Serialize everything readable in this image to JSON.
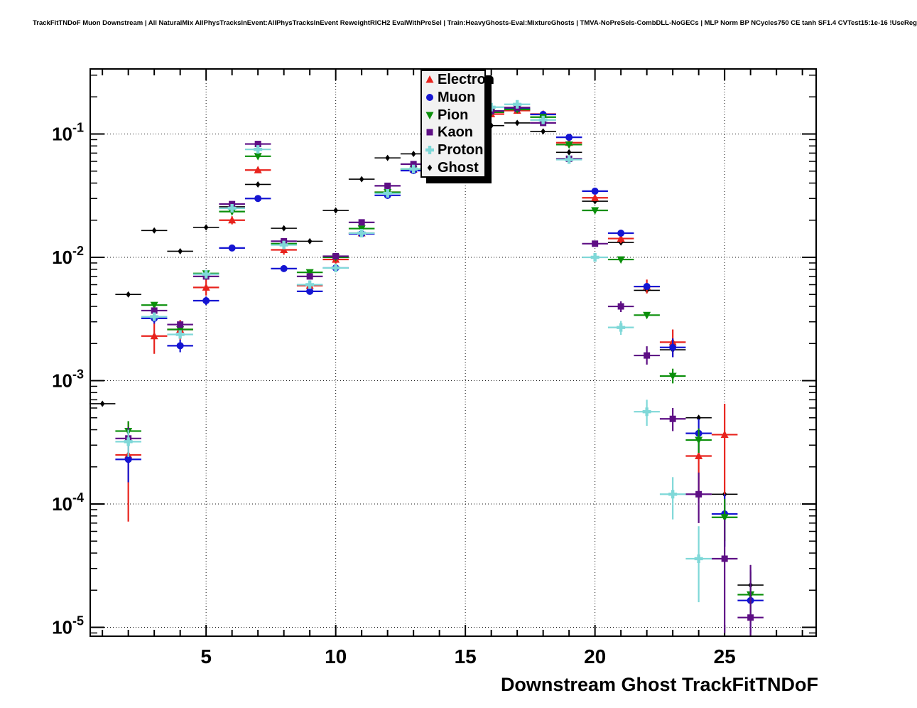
{
  "header": {
    "title": "TrackFitTNDoF Muon Downstream | All NaturalMix AllPhysTracksInEvent:AllPhysTracksInEvent ReweightRICH2 EvalWithPreSel | Train:HeavyGhosts-Eval:MixtureGhosts | TMVA-NoPreSels-CombDLL-NoGECs | MLP Norm BP NCycles750 CE tanh SF1.4 CVTest15:1e-16 !UseReg"
  },
  "legend": {
    "entries": [
      {
        "id": "electron",
        "label": "Electron",
        "marker": "triangle-up",
        "color": "#e8231d"
      },
      {
        "id": "muon",
        "label": "Muon",
        "marker": "circle",
        "color": "#1515d2"
      },
      {
        "id": "pion",
        "label": "Pion",
        "marker": "triangle-down",
        "color": "#0a8f0a"
      },
      {
        "id": "kaon",
        "label": "Kaon",
        "marker": "square",
        "color": "#5e0f85"
      },
      {
        "id": "proton",
        "label": "Proton",
        "marker": "plus",
        "color": "#7fd8d8"
      },
      {
        "id": "ghost",
        "label": "Ghost",
        "marker": "diamond",
        "color": "#000000"
      }
    ]
  },
  "chart_data": {
    "type": "scatter",
    "title": "",
    "xlabel": "Downstream Ghost TrackFitTNDoF",
    "ylabel": "",
    "y_scale": "log",
    "grid": "dotted",
    "legend_position": "top-center",
    "x_range": [
      0.53,
      28.53
    ],
    "y_range": [
      8.5e-06,
      0.337
    ],
    "x_major_ticks": [
      5,
      10,
      15,
      20,
      25
    ],
    "x_tick_labels": [
      "5",
      "10",
      "15",
      "20",
      "25"
    ],
    "x_minor_step": 1,
    "y_major_exponents": [
      -1,
      -2,
      -3,
      -4,
      -5
    ],
    "bin_half_width": 0.5,
    "series": [
      {
        "id": "ghost",
        "name": "Ghost",
        "marker": "diamond",
        "color": "#000000",
        "lw": 1.6,
        "points": [
          [
            1,
            0.00065
          ],
          [
            2,
            0.005
          ],
          [
            3,
            0.0165
          ],
          [
            4,
            0.0112
          ],
          [
            5,
            0.0175
          ],
          [
            6,
            0.0257
          ],
          [
            7,
            0.039
          ],
          [
            8,
            0.0172
          ],
          [
            9,
            0.0135
          ],
          [
            10,
            0.024
          ],
          [
            11,
            0.043
          ],
          [
            12,
            0.064
          ],
          [
            13,
            0.069
          ],
          [
            16,
            0.117
          ],
          [
            17,
            0.123
          ],
          [
            18,
            0.105
          ],
          [
            19,
            0.071
          ],
          [
            20,
            0.0285
          ],
          [
            21,
            0.0132
          ],
          [
            22,
            0.0054
          ],
          [
            23,
            0.00178
          ],
          [
            24,
            0.0005
          ],
          [
            25,
            0.00012,
            9.5e-05,
            0.00015
          ],
          [
            26,
            2.2e-05,
            1.45e-05,
            3.2e-05
          ]
        ]
      },
      {
        "id": "electron",
        "name": "Electron",
        "marker": "triangle-up",
        "color": "#e8231d",
        "lw": 2.2,
        "points": [
          [
            2,
            0.00025,
            7.2e-05,
            0.00046
          ],
          [
            3,
            0.0023,
            0.00165,
            0.003
          ],
          [
            4,
            0.0026,
            0.00215,
            0.0031
          ],
          [
            5,
            0.0057,
            0.0049,
            0.0066
          ],
          [
            6,
            0.02,
            0.0185,
            0.0215
          ],
          [
            7,
            0.051
          ],
          [
            8,
            0.0115,
            0.0105,
            0.0125
          ],
          [
            9,
            0.0059,
            0.0053,
            0.0065
          ],
          [
            10,
            0.0096,
            0.0089,
            0.0103
          ],
          [
            11,
            0.0157,
            0.0148,
            0.0166
          ],
          [
            12,
            0.0337
          ],
          [
            13,
            0.0515
          ],
          [
            16,
            0.145
          ],
          [
            17,
            0.155
          ],
          [
            18,
            0.145
          ],
          [
            19,
            0.085,
            0.081,
            0.089
          ],
          [
            20,
            0.0304,
            0.0285,
            0.032
          ],
          [
            21,
            0.0142,
            0.013,
            0.0155
          ],
          [
            22,
            0.0058,
            0.0051,
            0.0066
          ],
          [
            23,
            0.00205,
            0.00155,
            0.0026
          ],
          [
            24,
            0.000245,
            0.00011,
            0.00039
          ],
          [
            25,
            0.000365,
            9e-05,
            0.00065
          ]
        ]
      },
      {
        "id": "muon",
        "name": "Muon",
        "marker": "circle",
        "color": "#1515d2",
        "lw": 2.2,
        "points": [
          [
            2,
            0.00023,
            0.00015,
            0.00031
          ],
          [
            3,
            0.0032,
            0.0029,
            0.0035
          ],
          [
            4,
            0.00192,
            0.0017,
            0.00215
          ],
          [
            5,
            0.00445,
            0.0041,
            0.0048
          ],
          [
            6,
            0.0119
          ],
          [
            7,
            0.03
          ],
          [
            8,
            0.0081
          ],
          [
            9,
            0.0053
          ],
          [
            10,
            0.0082
          ],
          [
            11,
            0.0155
          ],
          [
            12,
            0.0318
          ],
          [
            13,
            0.0505
          ],
          [
            16,
            0.153
          ],
          [
            17,
            0.16
          ],
          [
            18,
            0.144
          ],
          [
            19,
            0.094
          ],
          [
            20,
            0.0344
          ],
          [
            21,
            0.0157
          ],
          [
            22,
            0.0058
          ],
          [
            23,
            0.00186,
            0.00155,
            0.0022
          ],
          [
            24,
            0.000374,
            0.00026,
            0.00049
          ],
          [
            25,
            8.3e-05,
            4.5e-05,
            0.00012
          ],
          [
            26,
            1.65e-05,
            9e-06,
            2.9e-05
          ]
        ]
      },
      {
        "id": "pion",
        "name": "Pion",
        "marker": "triangle-down",
        "color": "#0a8f0a",
        "lw": 2.2,
        "points": [
          [
            2,
            0.00039,
            0.00031,
            0.00047
          ],
          [
            3,
            0.0041
          ],
          [
            4,
            0.0026
          ],
          [
            5,
            0.0074
          ],
          [
            6,
            0.0235
          ],
          [
            7,
            0.066
          ],
          [
            8,
            0.0129
          ],
          [
            9,
            0.00755
          ],
          [
            10,
            0.01
          ],
          [
            11,
            0.0171
          ],
          [
            12,
            0.0337
          ],
          [
            13,
            0.052
          ],
          [
            16,
            0.15
          ],
          [
            17,
            0.158
          ],
          [
            18,
            0.137
          ],
          [
            19,
            0.082
          ],
          [
            20,
            0.024
          ],
          [
            21,
            0.0096
          ],
          [
            22,
            0.0034
          ],
          [
            23,
            0.00109,
            0.00095,
            0.00125
          ],
          [
            24,
            0.00033,
            0.00026,
            0.00041
          ],
          [
            25,
            7.8e-05,
            5e-05,
            0.00011
          ],
          [
            26,
            1.84e-05,
            1.1e-05,
            2.8e-05
          ]
        ]
      },
      {
        "id": "kaon",
        "name": "Kaon",
        "marker": "square",
        "color": "#5e0f85",
        "lw": 2.2,
        "points": [
          [
            2,
            0.00034,
            0.00026,
            0.00042
          ],
          [
            3,
            0.0037
          ],
          [
            4,
            0.00285
          ],
          [
            5,
            0.007
          ],
          [
            6,
            0.027
          ],
          [
            7,
            0.083
          ],
          [
            8,
            0.0135
          ],
          [
            9,
            0.007
          ],
          [
            10,
            0.0102
          ],
          [
            11,
            0.0192
          ],
          [
            12,
            0.038
          ],
          [
            13,
            0.057
          ],
          [
            16,
            0.154
          ],
          [
            17,
            0.164
          ],
          [
            18,
            0.123
          ],
          [
            19,
            0.063
          ],
          [
            20,
            0.0129
          ],
          [
            21,
            0.004,
            0.0036,
            0.0044
          ],
          [
            22,
            0.0016,
            0.00135,
            0.0019
          ],
          [
            23,
            0.00049,
            0.00039,
            0.0006
          ],
          [
            24,
            0.00012,
            7e-05,
            0.00018
          ],
          [
            25,
            3.6e-05,
            9e-06,
            7.5e-05
          ],
          [
            26,
            1.2e-05,
            8.6e-06,
            3.2e-05
          ]
        ]
      },
      {
        "id": "proton",
        "name": "Proton",
        "marker": "plus",
        "color": "#7fd8d8",
        "lw": 2.2,
        "points": [
          [
            2,
            0.00032,
            0.00024,
            0.0004
          ],
          [
            3,
            0.0033
          ],
          [
            4,
            0.00237
          ],
          [
            5,
            0.0073
          ],
          [
            6,
            0.025
          ],
          [
            7,
            0.075
          ],
          [
            8,
            0.0126
          ],
          [
            9,
            0.006
          ],
          [
            10,
            0.0082
          ],
          [
            11,
            0.0157
          ],
          [
            12,
            0.033
          ],
          [
            13,
            0.052
          ],
          [
            16,
            0.165
          ],
          [
            17,
            0.174
          ],
          [
            18,
            0.13
          ],
          [
            19,
            0.062
          ],
          [
            20,
            0.01
          ],
          [
            21,
            0.0027,
            0.00235,
            0.00305
          ],
          [
            22,
            0.00056,
            0.00043,
            0.0007
          ],
          [
            23,
            0.00012,
            7.5e-05,
            0.000165
          ],
          [
            24,
            3.6e-05,
            1.6e-05,
            6.6e-05
          ]
        ]
      }
    ]
  }
}
